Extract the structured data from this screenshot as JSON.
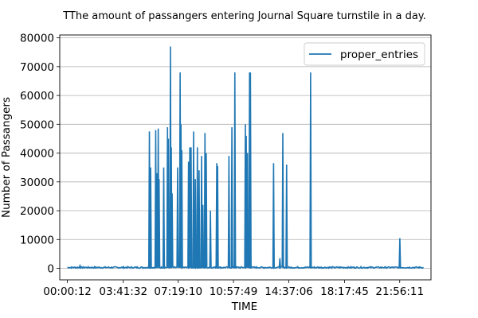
{
  "chart_data": {
    "type": "line",
    "title": "TThe amount of passangers entering Journal Square turnstile in a day.",
    "xlabel": "TIME",
    "ylabel": "Number of Passangers",
    "ylim": [
      -4000,
      81000
    ],
    "xlim": [
      -1800,
      86400
    ],
    "grid": "horizontal",
    "legend_placement": "top-right",
    "x_tick_labels": [
      "00:00:12",
      "03:41:32",
      "07:19:10",
      "10:57:49",
      "14:37:06",
      "18:17:45",
      "21:56:11"
    ],
    "x_tick_values": [
      12,
      13292,
      26350,
      39469,
      52626,
      65865,
      78971
    ],
    "y_tick_values": [
      0,
      10000,
      20000,
      30000,
      40000,
      50000,
      60000,
      70000,
      80000
    ],
    "y_tick_labels": [
      "0",
      "10000",
      "20000",
      "30000",
      "40000",
      "50000",
      "60000",
      "70000",
      "80000"
    ],
    "series": [
      {
        "name": "proper_entries",
        "color": "#1f77b4",
        "baseline": 300,
        "spikes": [
          [
            3000,
            900
          ],
          [
            19500,
            47500
          ],
          [
            19800,
            35000
          ],
          [
            21000,
            48000
          ],
          [
            21300,
            33000
          ],
          [
            21600,
            48500
          ],
          [
            21800,
            31000
          ],
          [
            22900,
            35000
          ],
          [
            23800,
            49000
          ],
          [
            24000,
            45000
          ],
          [
            24500,
            77000
          ],
          [
            24700,
            42000
          ],
          [
            24900,
            26000
          ],
          [
            26200,
            35000
          ],
          [
            26800,
            68000
          ],
          [
            27000,
            50000
          ],
          [
            27200,
            41000
          ],
          [
            28800,
            37000
          ],
          [
            29100,
            42000
          ],
          [
            29400,
            42000
          ],
          [
            30000,
            47500
          ],
          [
            30400,
            31000
          ],
          [
            30900,
            42000
          ],
          [
            31300,
            34000
          ],
          [
            31900,
            39000
          ],
          [
            32200,
            22000
          ],
          [
            32700,
            47000
          ],
          [
            33000,
            40000
          ],
          [
            34000,
            20000
          ],
          [
            35500,
            36500
          ],
          [
            35700,
            35500
          ],
          [
            38400,
            39000
          ],
          [
            39100,
            49000
          ],
          [
            39800,
            68000
          ],
          [
            42300,
            50000
          ],
          [
            42500,
            46000
          ],
          [
            42800,
            40000
          ],
          [
            43300,
            68000
          ],
          [
            43500,
            68000
          ],
          [
            49000,
            36500
          ],
          [
            50500,
            3500
          ],
          [
            51200,
            47000
          ],
          [
            52100,
            36000
          ],
          [
            57800,
            68000
          ],
          [
            79000,
            10500
          ]
        ]
      }
    ]
  }
}
